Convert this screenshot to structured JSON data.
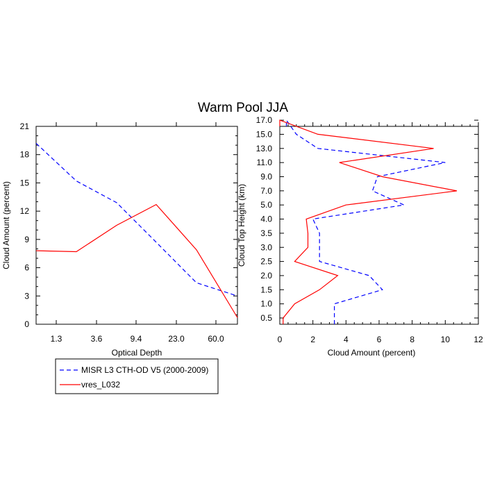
{
  "figure": {
    "title": "Warm Pool JJA"
  },
  "colors": {
    "misr": "#0000ff",
    "model": "#ff0000",
    "frame": "#000000"
  },
  "legend": {
    "entries": [
      {
        "label": "MISR L3 CTH-OD V5 (2000-2009)",
        "style": "dashed",
        "color": "#0000ff"
      },
      {
        "label": "vres_L032",
        "style": "solid",
        "color": "#ff0000"
      }
    ]
  },
  "chart_data": [
    {
      "type": "line",
      "xlabel": "Optical Depth",
      "ylabel": "Cloud Amount (percent)",
      "x_tick_labels": [
        "1.3",
        "3.6",
        "9.4",
        "23.0",
        "60.0"
      ],
      "y_ticks": [
        0,
        3,
        6,
        9,
        12,
        15,
        18,
        21
      ],
      "ylim": [
        0,
        21
      ],
      "grid": false,
      "series": [
        {
          "name": "MISR L3 CTH-OD V5 (2000-2009)",
          "values": [
            19.2,
            15.2,
            12.9,
            8.7,
            4.4,
            3.0
          ]
        },
        {
          "name": "vres_L032",
          "values": [
            7.8,
            7.7,
            10.5,
            12.7,
            7.9,
            0.7
          ]
        }
      ]
    },
    {
      "type": "line",
      "xlabel": "Cloud Amount (percent)",
      "ylabel": "Cloud Top Height (km)",
      "x_ticks": [
        0,
        2,
        4,
        6,
        8,
        10,
        12
      ],
      "xlim": [
        0,
        12
      ],
      "y_tick_labels": [
        "0.5",
        "1.0",
        "1.5",
        "2.0",
        "2.5",
        "3.0",
        "3.5",
        "4.0",
        "5.0",
        "7.0",
        "9.0",
        "11.0",
        "13.0",
        "15.0",
        "17.0"
      ],
      "grid": false,
      "series": [
        {
          "name": "MISR L3 CTH-OD V5 (2000-2009)",
          "values": [
            3.3,
            3.3,
            6.2,
            5.4,
            2.4,
            2.4,
            2.4,
            2.0,
            7.5,
            5.6,
            5.9,
            10.0,
            2.3,
            1.0,
            0.4
          ]
        },
        {
          "name": "vres_L032",
          "values": [
            0.2,
            0.9,
            2.4,
            3.5,
            0.9,
            1.7,
            1.7,
            1.6,
            4.0,
            10.7,
            6.2,
            3.6,
            9.3,
            2.3,
            0.0
          ]
        }
      ]
    }
  ]
}
